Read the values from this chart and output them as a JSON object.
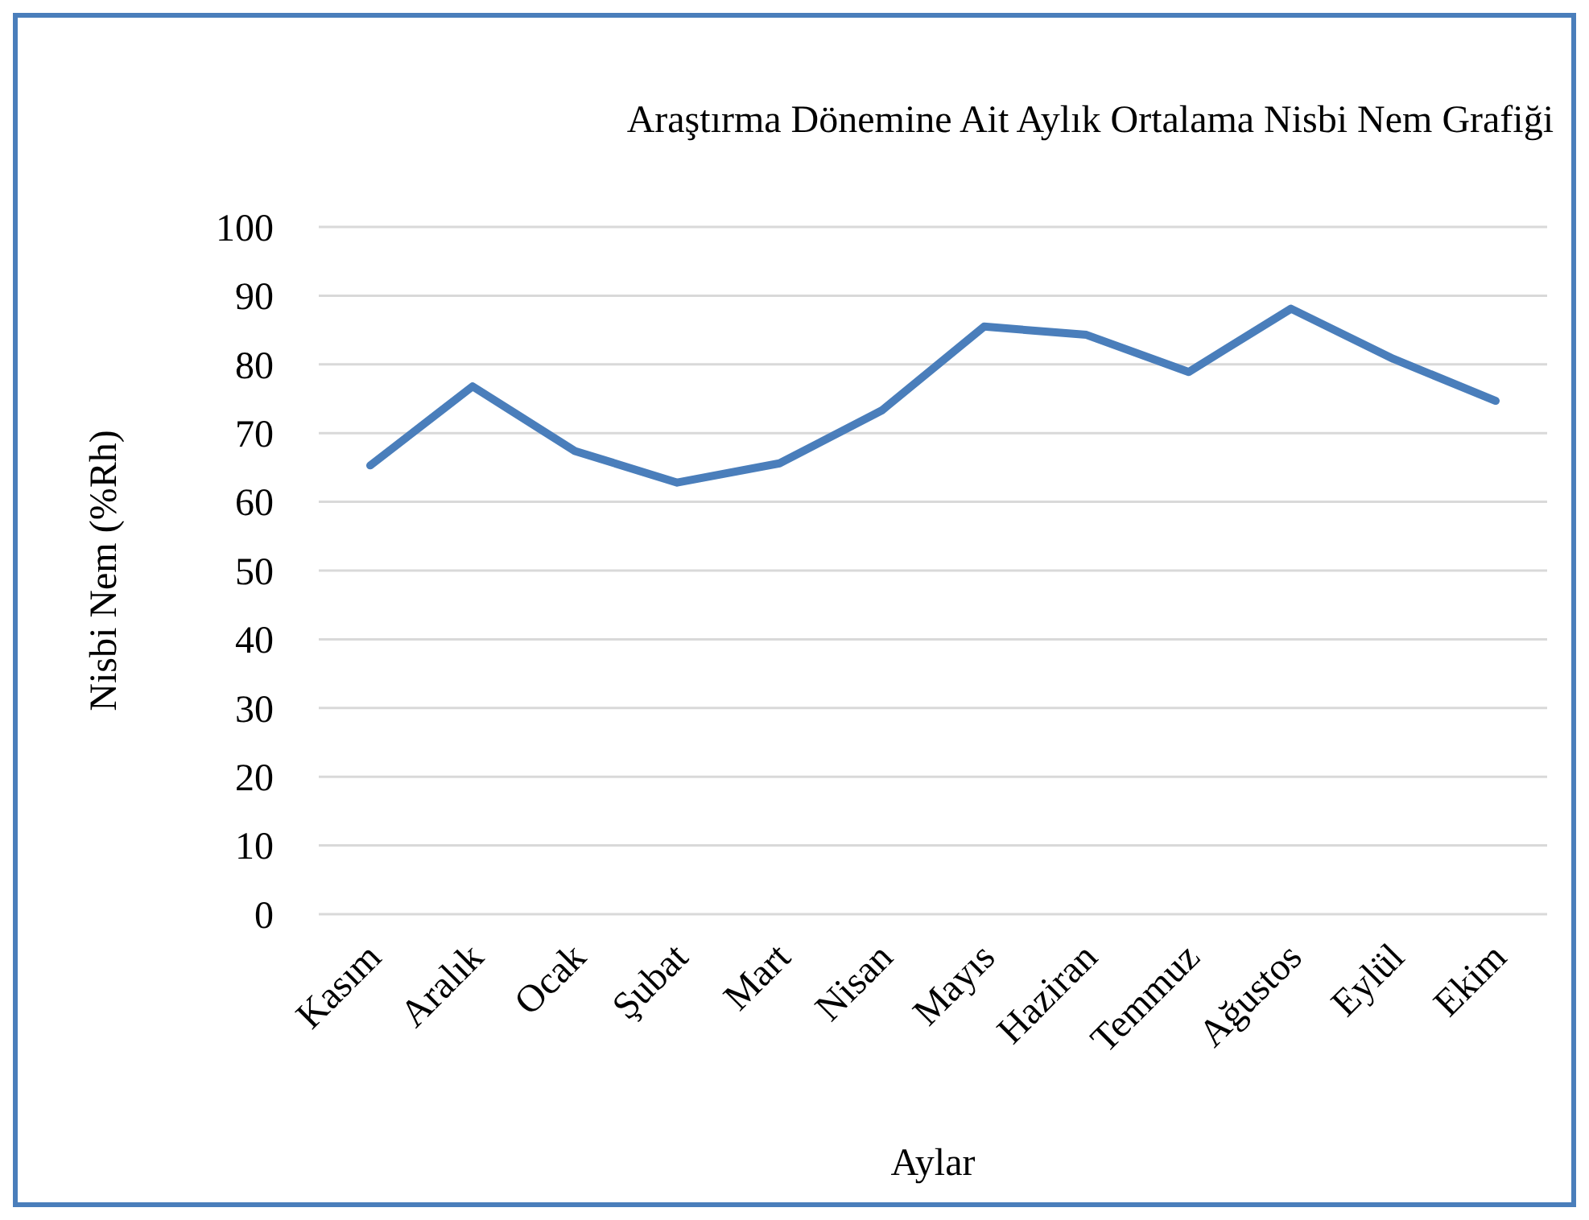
{
  "chart_data": {
    "type": "line",
    "title": "Araştırma Dönemine Ait Aylık Ortalama Nisbi Nem Grafiği",
    "xlabel": "Aylar",
    "ylabel": "Nisbi Nem (%Rh)",
    "categories": [
      "Kasım",
      "Aralık",
      "Ocak",
      "Şubat",
      "Mart",
      "Nisan",
      "Mayıs",
      "Haziran",
      "Temmuz",
      "Ağustos",
      "Eylül",
      "Ekim"
    ],
    "series": [
      {
        "color": "#4a7ebb",
        "values": [
          65.3,
          76.8,
          67.4,
          62.8,
          65.6,
          73.3,
          85.5,
          84.3,
          78.9,
          88.1,
          80.8,
          74.7
        ]
      }
    ],
    "ylim": [
      0,
      100
    ],
    "yticks": [
      0,
      10,
      20,
      30,
      40,
      50,
      60,
      70,
      80,
      90,
      100
    ],
    "grid": "y",
    "marker": "none",
    "line_style": "solid"
  }
}
